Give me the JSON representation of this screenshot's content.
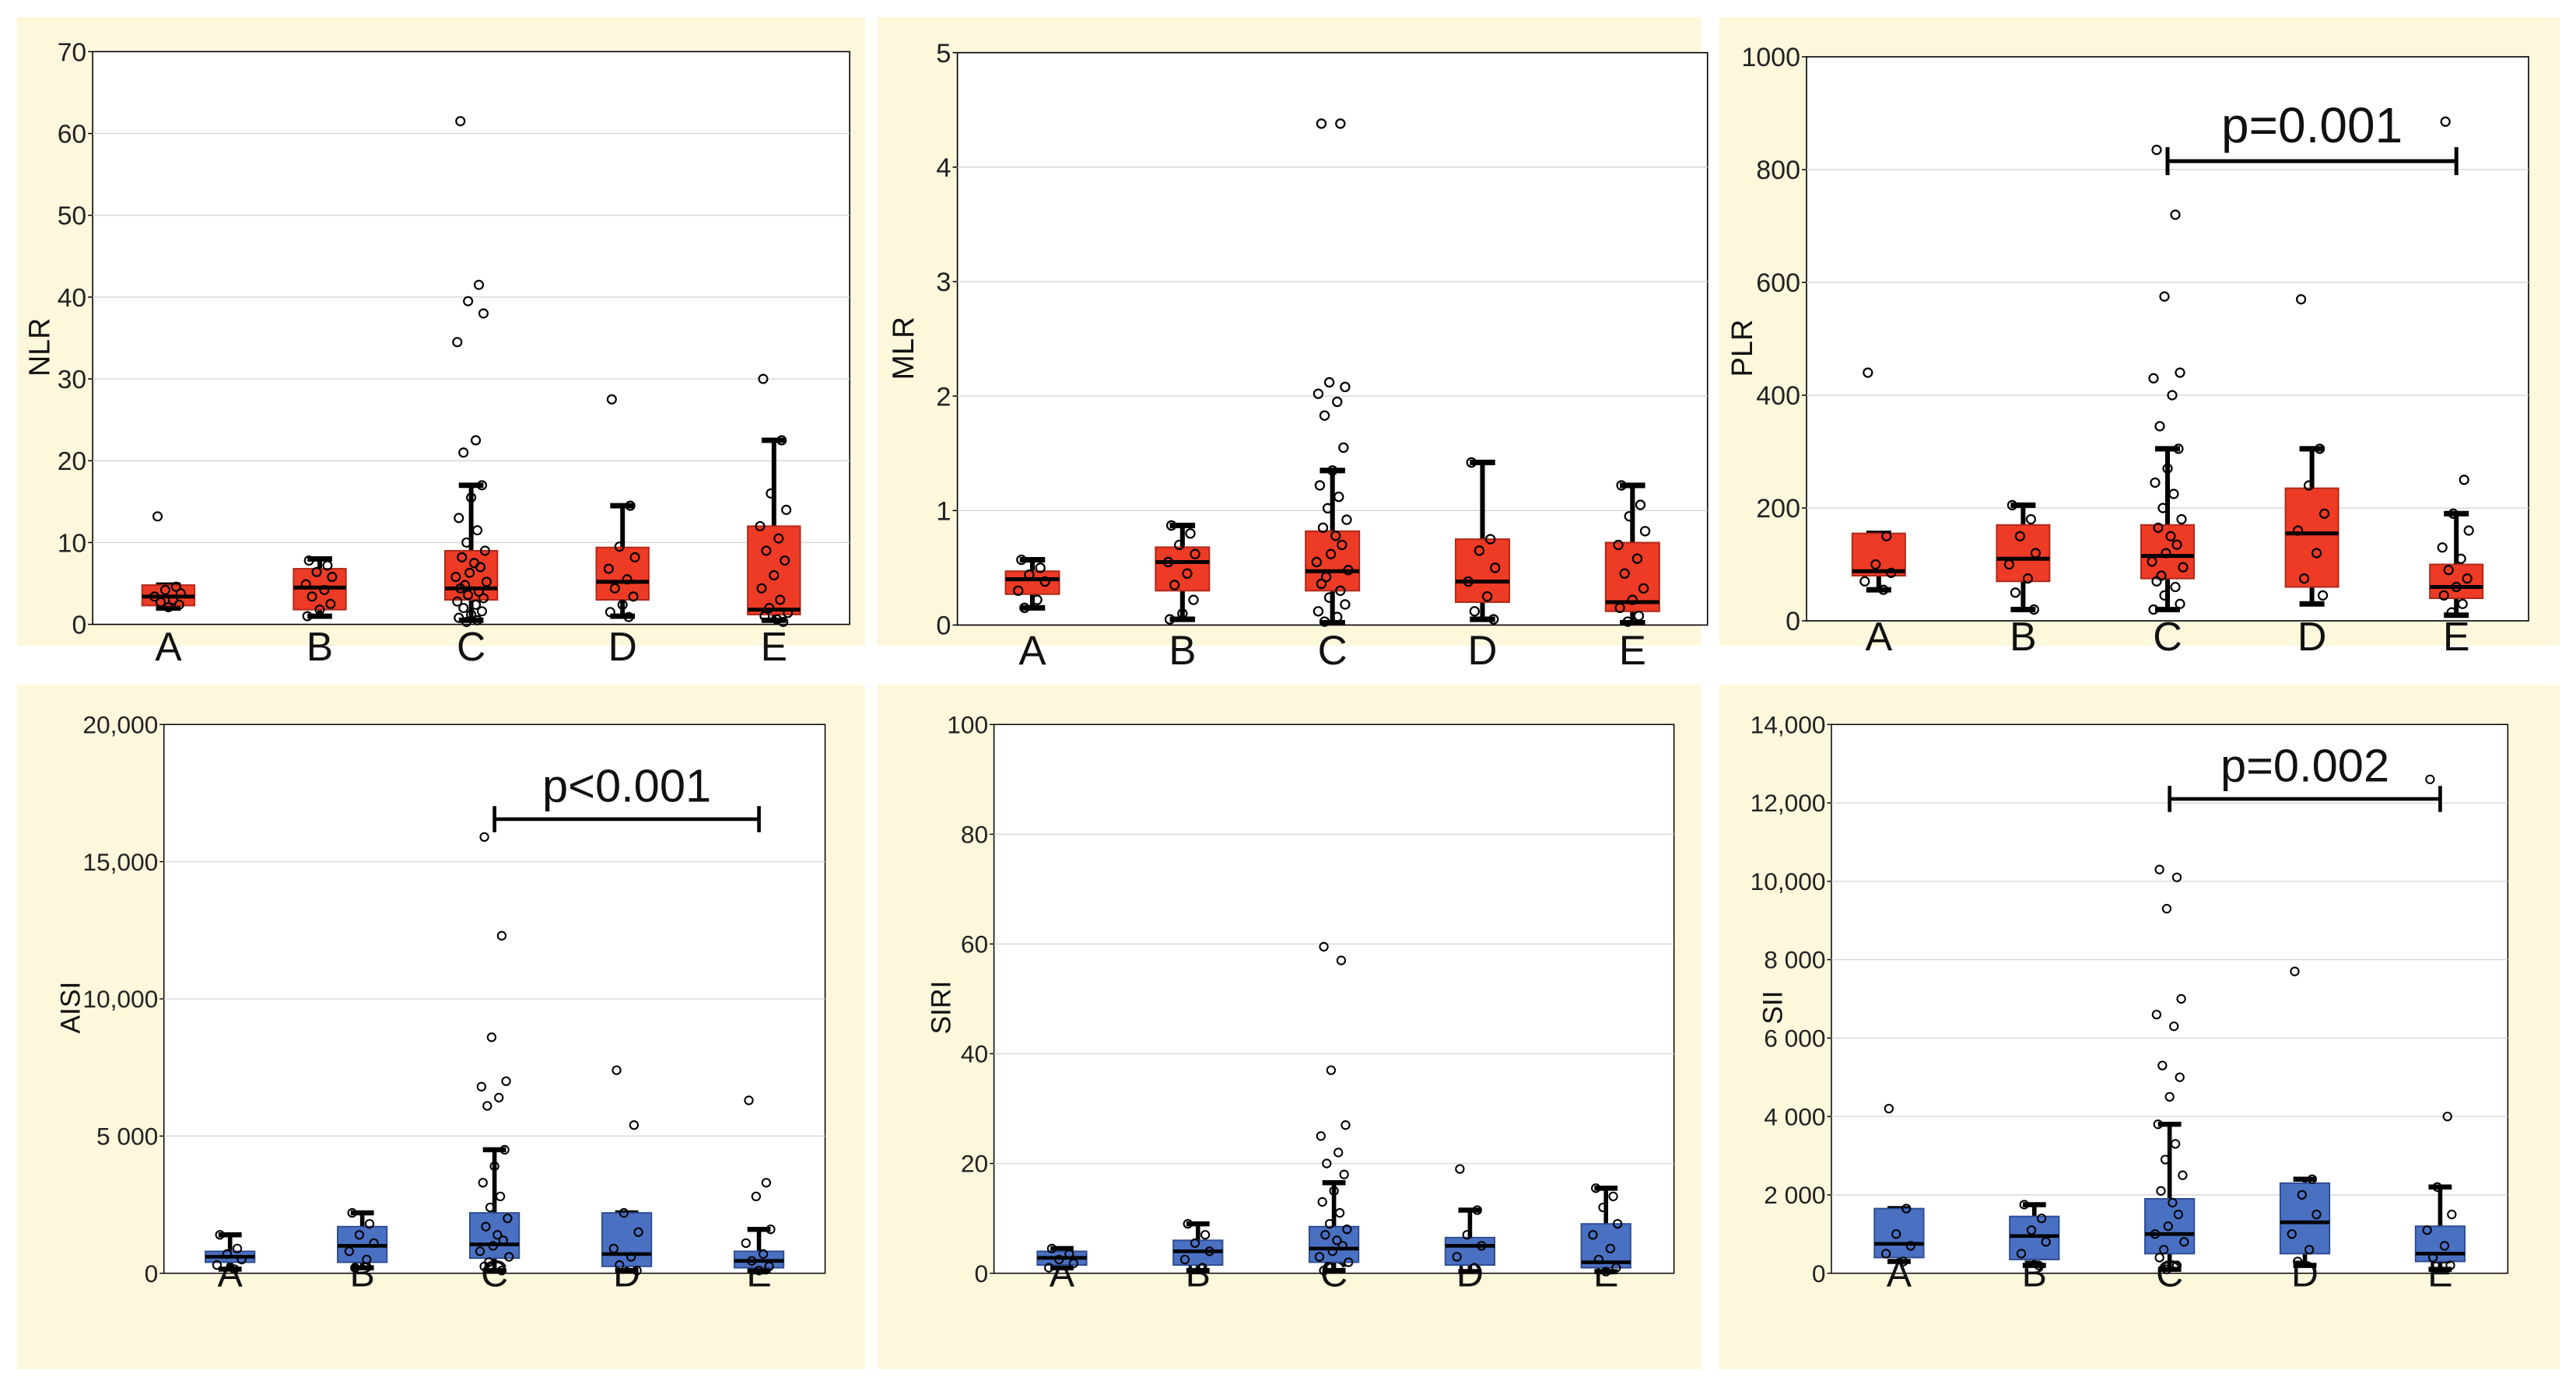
{
  "colors": {
    "panel_bg": "#fdf7dc",
    "box_red": "#ee3b26",
    "box_blue": "#4a70c2"
  },
  "categories": [
    "A",
    "B",
    "C",
    "D",
    "E"
  ],
  "chart_data": [
    {
      "type": "box",
      "ylabel": "NLR",
      "ylim": [
        0,
        70
      ],
      "yticks": [
        "0",
        "10",
        "20",
        "30",
        "40",
        "50",
        "60",
        "70"
      ],
      "ytick_values": [
        0,
        10,
        20,
        30,
        40,
        50,
        60,
        70
      ],
      "color": "red",
      "categories": [
        "A",
        "B",
        "C",
        "D",
        "E"
      ],
      "boxes": [
        {
          "min": 2,
          "q1": 2.3,
          "median": 3.4,
          "q3": 4.8,
          "max": 4.8,
          "points": [
            13.2,
            4.6,
            4.2,
            3.8,
            3.4,
            3.0,
            2.7,
            2.4,
            2.1
          ]
        },
        {
          "min": 1,
          "q1": 1.8,
          "median": 4.5,
          "q3": 6.8,
          "max": 8,
          "points": [
            7.8,
            7.2,
            6.4,
            5.8,
            4.9,
            4.2,
            3.4,
            2.5,
            1.8,
            1.0
          ]
        },
        {
          "min": 0.5,
          "q1": 3,
          "median": 4.4,
          "q3": 9,
          "max": 17,
          "points": [
            61.5,
            41.5,
            39.5,
            38,
            34.5,
            22.5,
            21,
            17,
            15.5,
            13,
            11.5,
            10,
            9,
            8.2,
            7.5,
            7,
            6.3,
            5.8,
            5.2,
            4.8,
            4.4,
            4,
            3.6,
            3.2,
            2.8,
            2.4,
            2,
            1.6,
            1.2,
            0.8,
            0.5,
            0.3
          ]
        },
        {
          "min": 1,
          "q1": 3,
          "median": 5.2,
          "q3": 9.4,
          "max": 14.5,
          "points": [
            27.5,
            14.5,
            9.5,
            8.2,
            6.8,
            5.5,
            4.4,
            3.4,
            2.4,
            1.5,
            0.9
          ]
        },
        {
          "min": 0.5,
          "q1": 1.2,
          "median": 1.8,
          "q3": 12,
          "max": 22.5,
          "points": [
            30,
            22.5,
            16,
            14,
            12,
            10.5,
            9,
            7.8,
            6,
            4.4,
            3,
            2,
            1.4,
            1,
            0.6,
            0.3
          ]
        }
      ]
    },
    {
      "type": "box",
      "ylabel": "MLR",
      "ylim": [
        0,
        5
      ],
      "yticks": [
        "0",
        "1",
        "2",
        "3",
        "4",
        "5"
      ],
      "ytick_values": [
        0,
        1,
        2,
        3,
        4,
        5
      ],
      "color": "red",
      "categories": [
        "A",
        "B",
        "C",
        "D",
        "E"
      ],
      "boxes": [
        {
          "min": 0.15,
          "q1": 0.27,
          "median": 0.4,
          "q3": 0.47,
          "max": 0.57,
          "points": [
            0.57,
            0.5,
            0.44,
            0.38,
            0.3,
            0.22,
            0.15
          ]
        },
        {
          "min": 0.05,
          "q1": 0.3,
          "median": 0.55,
          "q3": 0.68,
          "max": 0.87,
          "points": [
            0.87,
            0.8,
            0.7,
            0.62,
            0.55,
            0.45,
            0.35,
            0.22,
            0.1,
            0.05
          ]
        },
        {
          "min": 0.02,
          "q1": 0.3,
          "median": 0.47,
          "q3": 0.82,
          "max": 1.35,
          "points": [
            4.38,
            4.38,
            2.12,
            2.08,
            2.02,
            1.95,
            1.83,
            1.55,
            1.35,
            1.22,
            1.12,
            1.02,
            0.92,
            0.85,
            0.78,
            0.7,
            0.62,
            0.55,
            0.48,
            0.42,
            0.36,
            0.3,
            0.24,
            0.18,
            0.12,
            0.07,
            0.03
          ]
        },
        {
          "min": 0.05,
          "q1": 0.2,
          "median": 0.38,
          "q3": 0.75,
          "max": 1.42,
          "points": [
            1.42,
            0.75,
            0.65,
            0.5,
            0.38,
            0.25,
            0.12,
            0.05
          ]
        },
        {
          "min": 0.02,
          "q1": 0.12,
          "median": 0.2,
          "q3": 0.72,
          "max": 1.22,
          "points": [
            1.22,
            1.05,
            0.95,
            0.82,
            0.7,
            0.58,
            0.45,
            0.32,
            0.22,
            0.15,
            0.08,
            0.03
          ]
        }
      ]
    },
    {
      "type": "box",
      "ylabel": "PLR",
      "ylim": [
        0,
        1000
      ],
      "yticks": [
        "0",
        "200",
        "400",
        "600",
        "800",
        "1000"
      ],
      "ytick_values": [
        0,
        200,
        400,
        600,
        800,
        1000
      ],
      "color": "red",
      "categories": [
        "A",
        "B",
        "C",
        "D",
        "E"
      ],
      "boxes": [
        {
          "min": 55,
          "q1": 80,
          "median": 88,
          "q3": 155,
          "max": 155,
          "points": [
            440,
            150,
            100,
            85,
            70,
            55
          ]
        },
        {
          "min": 20,
          "q1": 70,
          "median": 110,
          "q3": 170,
          "max": 205,
          "points": [
            205,
            180,
            150,
            120,
            100,
            75,
            50,
            20
          ]
        },
        {
          "min": 20,
          "q1": 75,
          "median": 115,
          "q3": 170,
          "max": 305,
          "points": [
            835,
            720,
            575,
            440,
            430,
            400,
            345,
            305,
            270,
            245,
            225,
            200,
            180,
            165,
            150,
            135,
            120,
            105,
            95,
            80,
            70,
            60,
            45,
            30,
            20
          ]
        },
        {
          "min": 30,
          "q1": 60,
          "median": 155,
          "q3": 235,
          "max": 305,
          "points": [
            570,
            305,
            240,
            190,
            160,
            120,
            75,
            45
          ]
        },
        {
          "min": 10,
          "q1": 40,
          "median": 60,
          "q3": 100,
          "max": 190,
          "points": [
            885,
            250,
            190,
            160,
            130,
            110,
            90,
            75,
            60,
            45,
            30,
            15
          ]
        }
      ],
      "significance": {
        "label": "p=0.001",
        "from": "C",
        "to": "E",
        "y": 815
      }
    },
    {
      "type": "box",
      "ylabel": "AISI",
      "ylim": [
        0,
        20000
      ],
      "yticks": [
        "0",
        "5 000",
        "10,000",
        "15,000",
        "20,000"
      ],
      "ytick_values": [
        0,
        5000,
        10000,
        15000,
        20000
      ],
      "color": "blue",
      "categories": [
        "A",
        "B",
        "C",
        "D",
        "E"
      ],
      "boxes": [
        {
          "min": 150,
          "q1": 400,
          "median": 600,
          "q3": 800,
          "max": 1400,
          "points": [
            1400,
            900,
            700,
            500,
            300,
            150
          ]
        },
        {
          "min": 200,
          "q1": 400,
          "median": 1000,
          "q3": 1700,
          "max": 2200,
          "points": [
            2200,
            1800,
            1400,
            1100,
            800,
            500,
            200
          ]
        },
        {
          "min": 100,
          "q1": 550,
          "median": 1050,
          "q3": 2200,
          "max": 4500,
          "points": [
            15900,
            12300,
            8600,
            7000,
            6800,
            6400,
            6100,
            4500,
            3900,
            3300,
            2800,
            2400,
            2000,
            1700,
            1400,
            1200,
            1000,
            800,
            600,
            400,
            250,
            100
          ]
        },
        {
          "min": 100,
          "q1": 250,
          "median": 700,
          "q3": 2200,
          "max": 2200,
          "points": [
            7400,
            5400,
            2200,
            1500,
            900,
            600,
            300,
            100
          ]
        },
        {
          "min": 100,
          "q1": 200,
          "median": 450,
          "q3": 800,
          "max": 1600,
          "points": [
            6300,
            3300,
            2800,
            1600,
            1100,
            700,
            450,
            250,
            100
          ]
        }
      ],
      "significance": {
        "label": "p<0.001",
        "from": "C",
        "to": "E",
        "y": 16550
      }
    },
    {
      "type": "box",
      "ylabel": "SIRI",
      "ylim": [
        0,
        100
      ],
      "yticks": [
        "0",
        "20",
        "40",
        "60",
        "80",
        "100"
      ],
      "ytick_values": [
        0,
        20,
        40,
        60,
        80,
        100
      ],
      "color": "blue",
      "categories": [
        "A",
        "B",
        "C",
        "D",
        "E"
      ],
      "boxes": [
        {
          "min": 1,
          "q1": 1.5,
          "median": 2.8,
          "q3": 4,
          "max": 4.5,
          "points": [
            4.5,
            3.5,
            2.5,
            1.8,
            1
          ]
        },
        {
          "min": 0.5,
          "q1": 1.5,
          "median": 4,
          "q3": 6,
          "max": 9,
          "points": [
            9,
            7,
            5.5,
            4,
            2.5,
            1
          ]
        },
        {
          "min": 0.5,
          "q1": 2,
          "median": 4.5,
          "q3": 8.5,
          "max": 16.5,
          "points": [
            59.5,
            57,
            37,
            27,
            25,
            22,
            20,
            18,
            15,
            13,
            11,
            9,
            8,
            7,
            6,
            5,
            4,
            3,
            2,
            1.2,
            0.5
          ]
        },
        {
          "min": 0.3,
          "q1": 1.5,
          "median": 5,
          "q3": 6.5,
          "max": 11.5,
          "points": [
            19,
            11.5,
            7,
            5,
            3,
            1
          ]
        },
        {
          "min": 0.3,
          "q1": 1,
          "median": 2,
          "q3": 9,
          "max": 15.5,
          "points": [
            15.5,
            14,
            12,
            9,
            7,
            4.5,
            2.5,
            1,
            0.3
          ]
        }
      ]
    },
    {
      "type": "box",
      "ylabel": "SII",
      "ylim": [
        0,
        14000
      ],
      "yticks": [
        "0",
        "2 000",
        "4 000",
        "6 000",
        "8 000",
        "10,000",
        "12,000",
        "14,000"
      ],
      "ytick_values": [
        0,
        2000,
        4000,
        6000,
        8000,
        10000,
        12000,
        14000
      ],
      "color": "blue",
      "categories": [
        "A",
        "B",
        "C",
        "D",
        "E"
      ],
      "boxes": [
        {
          "min": 300,
          "q1": 400,
          "median": 750,
          "q3": 1650,
          "max": 1650,
          "points": [
            4200,
            1650,
            1000,
            700,
            500,
            300
          ]
        },
        {
          "min": 200,
          "q1": 350,
          "median": 950,
          "q3": 1450,
          "max": 1750,
          "points": [
            1750,
            1400,
            1100,
            800,
            500,
            200
          ]
        },
        {
          "min": 100,
          "q1": 500,
          "median": 1000,
          "q3": 1900,
          "max": 3800,
          "points": [
            10300,
            10100,
            9300,
            7000,
            6600,
            6300,
            5300,
            5000,
            4500,
            3800,
            3300,
            2900,
            2500,
            2100,
            1800,
            1500,
            1200,
            1000,
            800,
            600,
            400,
            200,
            100
          ]
        },
        {
          "min": 200,
          "q1": 500,
          "median": 1300,
          "q3": 2300,
          "max": 2400,
          "points": [
            7700,
            2400,
            2000,
            1500,
            1000,
            600,
            300
          ]
        },
        {
          "min": 100,
          "q1": 300,
          "median": 500,
          "q3": 1200,
          "max": 2200,
          "points": [
            12600,
            4000,
            2200,
            1500,
            1100,
            700,
            400,
            200
          ]
        }
      ],
      "significance": {
        "label": "p=0.002",
        "from": "C",
        "to": "E",
        "y": 12100
      }
    }
  ]
}
